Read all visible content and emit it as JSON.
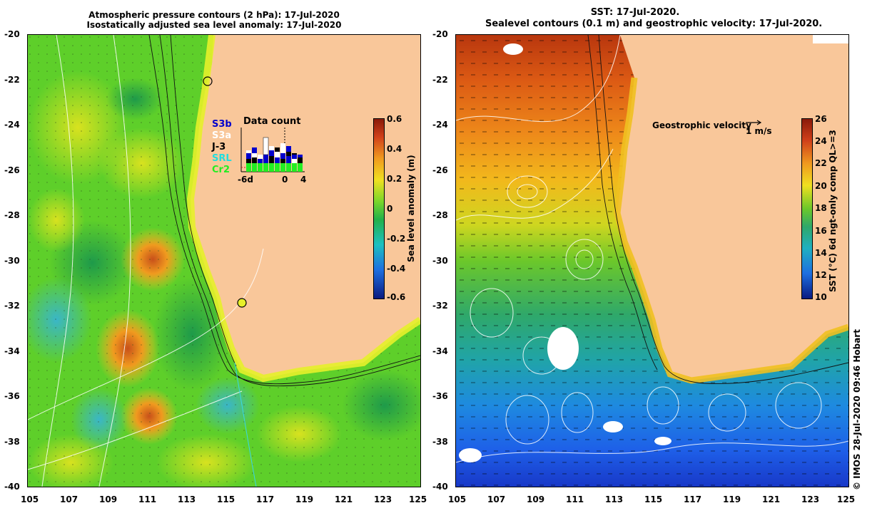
{
  "left_panel": {
    "title_line1": "Atmospheric pressure contours (2 hPa): 17-Jul-2020",
    "title_line2": "Isostatically adjusted sea level anomaly: 17-Jul-2020",
    "y_ticks": [
      "-20",
      "-22",
      "-24",
      "-26",
      "-28",
      "-30",
      "-32",
      "-34",
      "-36",
      "-38",
      "-40"
    ],
    "x_ticks": [
      "105",
      "107",
      "109",
      "111",
      "113",
      "115",
      "117",
      "119",
      "121",
      "123",
      "125"
    ],
    "colorbar": {
      "label": "Sea level anomaly (m)",
      "ticks": [
        "0.6",
        "0.4",
        "0.2",
        "0",
        "-0.2",
        "-0.4",
        "-0.6"
      ]
    },
    "data_count": {
      "title": "Data count",
      "missions": [
        {
          "name": "S3b",
          "color": "#0000cc"
        },
        {
          "name": "S3a",
          "color": "#ffffff"
        },
        {
          "name": "J-3",
          "color": "#000000"
        },
        {
          "name": "SRL",
          "color": "#22dddd"
        },
        {
          "name": "Cr2",
          "color": "#22ee22"
        }
      ],
      "x_ticks": [
        "-6d",
        "0",
        "4"
      ]
    }
  },
  "right_panel": {
    "title_line1": "SST: 17-Jul-2020.",
    "title_line2": "Sealevel contours (0.1 m) and geostrophic velocity: 17-Jul-2020.",
    "y_ticks": [
      "-20",
      "-22",
      "-24",
      "-26",
      "-28",
      "-30",
      "-32",
      "-34",
      "-36",
      "-38",
      "-40"
    ],
    "x_ticks": [
      "105",
      "107",
      "109",
      "111",
      "113",
      "115",
      "117",
      "119",
      "121",
      "123",
      "125"
    ],
    "velocity_legend": {
      "label": "Geostrophic velocity",
      "scale": "1 m/s"
    },
    "colorbar": {
      "label": "SST (°C) 6d ngt-only comp QL>=3",
      "ticks": [
        "26",
        "24",
        "22",
        "20",
        "18",
        "16",
        "14",
        "12",
        "10"
      ]
    }
  },
  "credit": "© IMOS 28-Jul-2020 09:46 Hobart",
  "colors": {
    "land": "#f9c79a",
    "sla_neutral": "#5ecf2a",
    "sst_warm": "#e8661a",
    "sst_cold": "#1e5fe8"
  }
}
